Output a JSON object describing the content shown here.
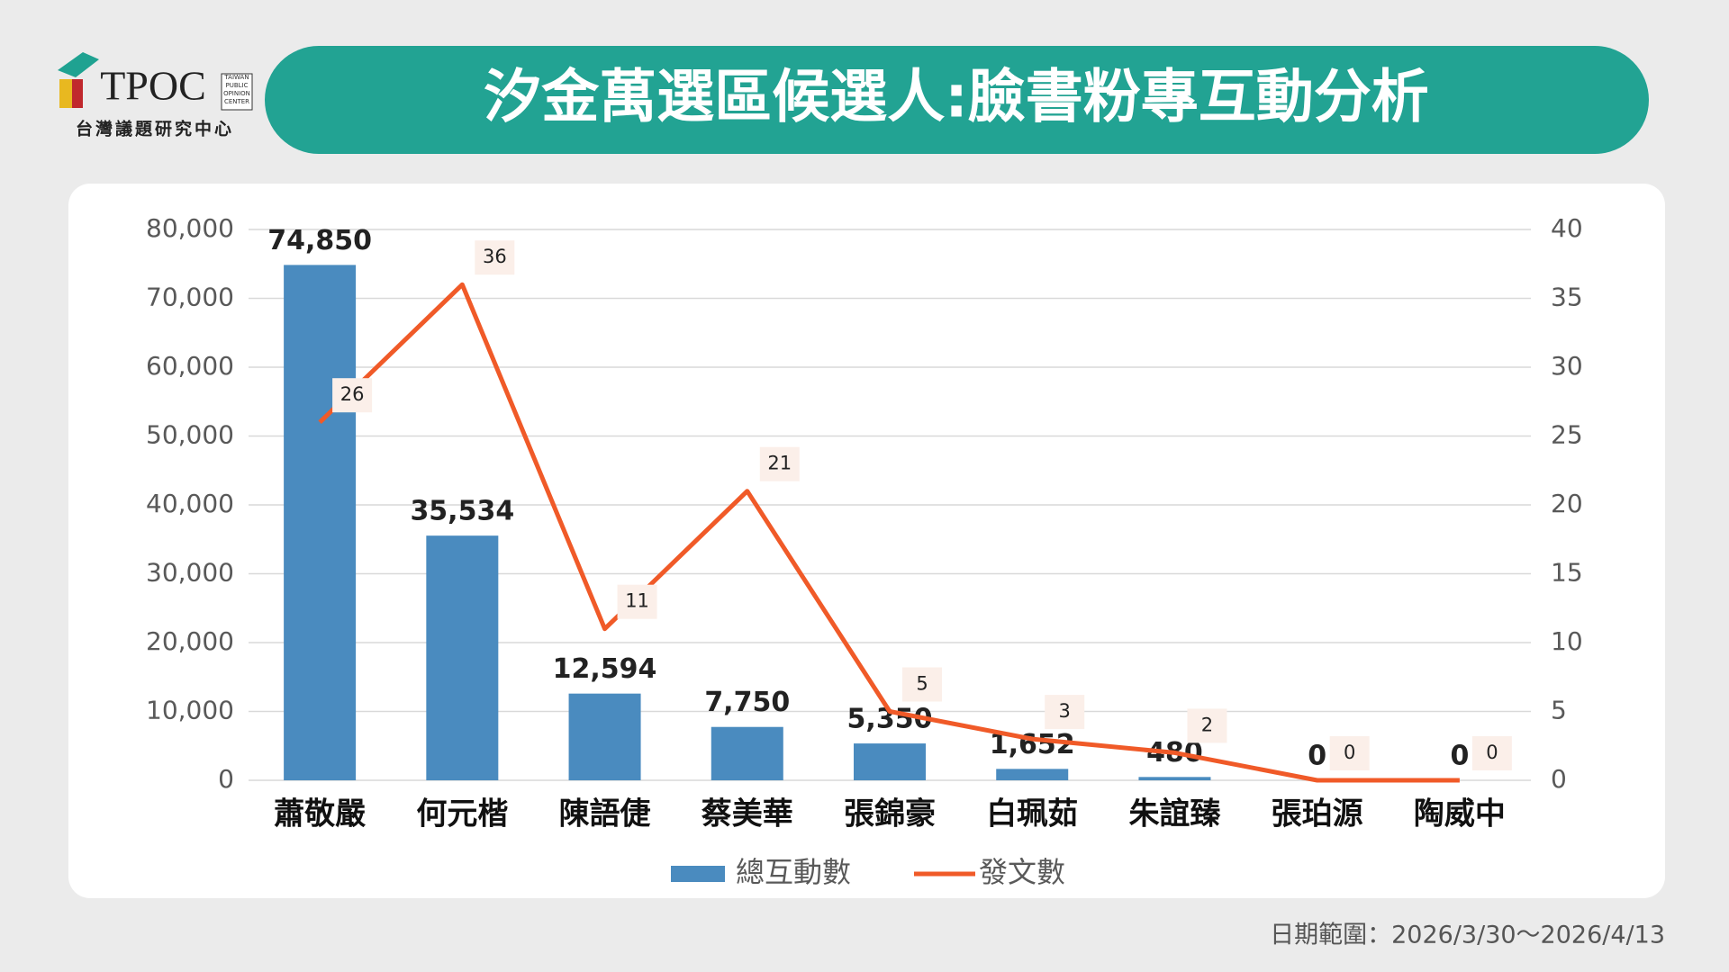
{
  "header": {
    "logo": {
      "abbr": "TPOC",
      "name": "台灣議題研究中心",
      "english": [
        "TAIWAN",
        "PUBLIC",
        "OPINION",
        "CENTER"
      ]
    }
  },
  "chart_data": {
    "type": "bar",
    "title": "汐金萬選區候選人:臉書粉專互動分析",
    "categories": [
      "蕭敬嚴",
      "何元楷",
      "陳語倢",
      "蔡美華",
      "張錦豪",
      "白珮茹",
      "朱誼臻",
      "張珀源",
      "陶威中"
    ],
    "series": [
      {
        "name": "總互動數",
        "type": "bar",
        "color": "#4a8bbf",
        "values": [
          74850,
          35534,
          12594,
          7750,
          5350,
          1652,
          480,
          0,
          0
        ],
        "value_labels": [
          "74,850",
          "35,534",
          "12,594",
          "7,750",
          "5,350",
          "1,652",
          "480",
          "0",
          "0"
        ]
      },
      {
        "name": "發文數",
        "type": "line",
        "color": "#f05a28",
        "axis": "y2",
        "values": [
          26,
          36,
          11,
          21,
          5,
          3,
          2,
          0,
          0
        ]
      }
    ],
    "ylim": [
      0,
      80000
    ],
    "yticks": [
      0,
      {
        "value": 10000,
        "label": "10,000"
      },
      {
        "value": 20000,
        "label": "20,000"
      },
      {
        "value": 30000,
        "label": "30,000"
      },
      {
        "value": 40000,
        "label": "40,000"
      },
      {
        "value": 50000,
        "label": "50,000"
      },
      {
        "value": 60000,
        "label": "60,000"
      },
      {
        "value": 70000,
        "label": "70,000"
      },
      {
        "value": 80000,
        "label": "80,000"
      }
    ],
    "y2lim": [
      0,
      40
    ],
    "y2ticks": [
      0,
      5,
      10,
      15,
      20,
      25,
      30,
      35,
      40
    ],
    "grid": true,
    "legend": "bottom"
  },
  "footer": {
    "date_range": "日期範圍：2026/3/30～2026/4/13"
  }
}
